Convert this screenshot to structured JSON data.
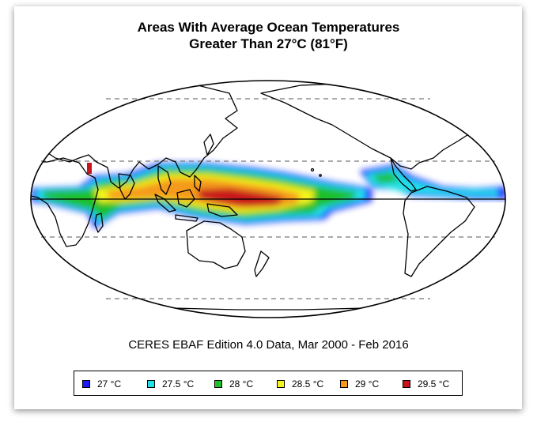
{
  "title_line1": "Areas With Average Ocean Temperatures",
  "title_line2": "Greater Than 27°C (81°F)",
  "subtitle": "CERES EBAF Edition 4.0 Data, Mar 2000 - Feb 2016",
  "map": {
    "projection": "mollweide",
    "center_longitude": 180,
    "graticule_latitudes": [
      -60,
      -23.5,
      23.5,
      60
    ],
    "equator_line": "solid",
    "graticule_style": "dashed"
  },
  "legend": {
    "items": [
      {
        "label": "27 °C",
        "color": "#1a1aff"
      },
      {
        "label": "27.5 °C",
        "color": "#22e0e8"
      },
      {
        "label": "28 °C",
        "color": "#1fbf2a"
      },
      {
        "label": "28.5 °C",
        "color": "#f4f41e"
      },
      {
        "label": "29 °C",
        "color": "#f59a1e"
      },
      {
        "label": "29.5 °C",
        "color": "#c8141c"
      }
    ]
  }
}
